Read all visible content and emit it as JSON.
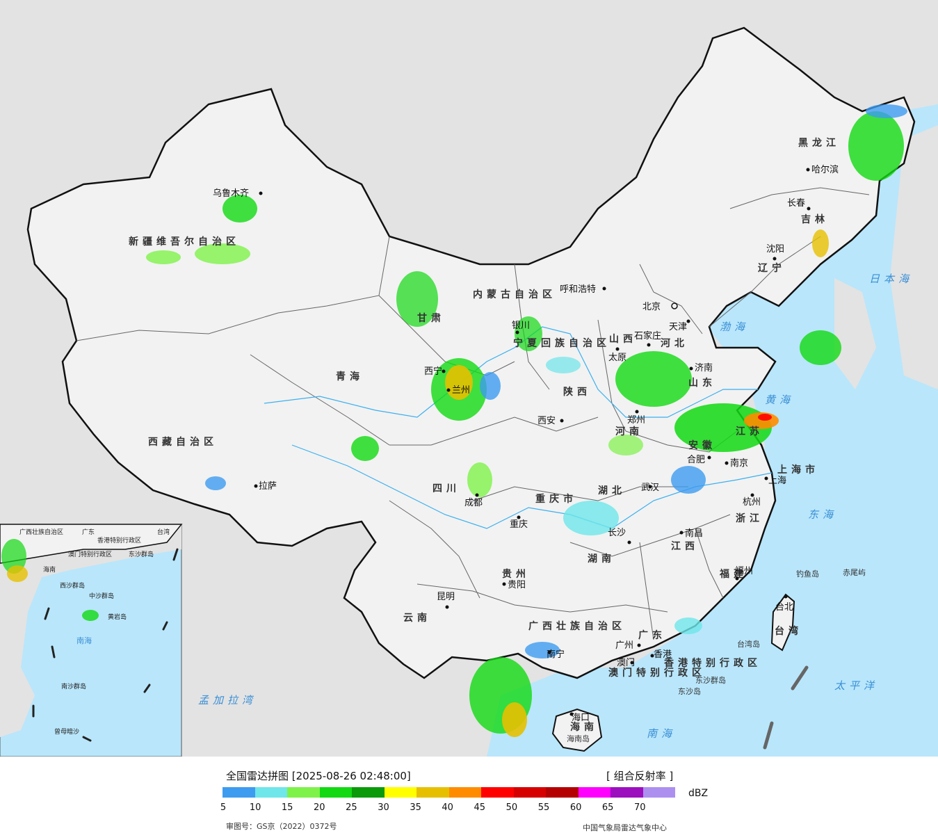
{
  "map": {
    "provinces": [
      {
        "id": "xinjiang",
        "label": "新疆维吾尔自治区"
      },
      {
        "id": "xizang",
        "label": "西藏自治区"
      },
      {
        "id": "qinghai",
        "label": "青海"
      },
      {
        "id": "gansu",
        "label": "甘肃"
      },
      {
        "id": "neimenggu",
        "label": "内蒙古自治区"
      },
      {
        "id": "heilongjiang",
        "label": "黑龙江"
      },
      {
        "id": "jilin",
        "label": "吉林"
      },
      {
        "id": "liaoning",
        "label": "辽宁"
      },
      {
        "id": "hebei",
        "label": "河北"
      },
      {
        "id": "shanxi",
        "label": "山西"
      },
      {
        "id": "shaanxi",
        "label": "陕西"
      },
      {
        "id": "ningxia",
        "label": "宁夏回族自治区"
      },
      {
        "id": "henan",
        "label": "河南"
      },
      {
        "id": "shandong",
        "label": "山东"
      },
      {
        "id": "jiangsu",
        "label": "江苏"
      },
      {
        "id": "anhui",
        "label": "安徽"
      },
      {
        "id": "shanghai",
        "label": "上海市"
      },
      {
        "id": "zhejiang",
        "label": "浙江"
      },
      {
        "id": "hubei",
        "label": "湖北"
      },
      {
        "id": "hunan",
        "label": "湖南"
      },
      {
        "id": "jiangxi",
        "label": "江西"
      },
      {
        "id": "fujian",
        "label": "福建"
      },
      {
        "id": "sichuan",
        "label": "四川"
      },
      {
        "id": "chongqing",
        "label": "重庆市"
      },
      {
        "id": "guizhou",
        "label": "贵州"
      },
      {
        "id": "yunnan",
        "label": "云南"
      },
      {
        "id": "guangxi",
        "label": "广西壮族自治区"
      },
      {
        "id": "guangdong",
        "label": "广东"
      },
      {
        "id": "hainan",
        "label": "海南"
      },
      {
        "id": "taiwan",
        "label": "台湾"
      },
      {
        "id": "hongkong",
        "label": "香港特别行政区"
      },
      {
        "id": "macau",
        "label": "澳门特别行政区"
      }
    ],
    "cities": [
      {
        "id": "urumqi",
        "label": "乌鲁木齐"
      },
      {
        "id": "lhasa",
        "label": "拉萨"
      },
      {
        "id": "xining",
        "label": "西宁"
      },
      {
        "id": "lanzhou",
        "label": "兰州"
      },
      {
        "id": "yinchuan",
        "label": "银川"
      },
      {
        "id": "hohhot",
        "label": "呼和浩特"
      },
      {
        "id": "harbin",
        "label": "哈尔滨"
      },
      {
        "id": "changchun",
        "label": "长春"
      },
      {
        "id": "shenyang",
        "label": "沈阳"
      },
      {
        "id": "beijing",
        "label": "北京"
      },
      {
        "id": "tianjin",
        "label": "天津"
      },
      {
        "id": "shijiazhuang",
        "label": "石家庄"
      },
      {
        "id": "taiyuan",
        "label": "太原"
      },
      {
        "id": "jinan",
        "label": "济南"
      },
      {
        "id": "zhengzhou",
        "label": "郑州"
      },
      {
        "id": "xian",
        "label": "西安"
      },
      {
        "id": "hefei",
        "label": "合肥"
      },
      {
        "id": "nanjing",
        "label": "南京"
      },
      {
        "id": "shanghai",
        "label": "上海"
      },
      {
        "id": "hangzhou",
        "label": "杭州"
      },
      {
        "id": "wuhan",
        "label": "武汉"
      },
      {
        "id": "changsha",
        "label": "长沙"
      },
      {
        "id": "nanchang",
        "label": "南昌"
      },
      {
        "id": "fuzhou",
        "label": "福州"
      },
      {
        "id": "chengdu",
        "label": "成都"
      },
      {
        "id": "chongqing",
        "label": "重庆"
      },
      {
        "id": "guiyang",
        "label": "贵阳"
      },
      {
        "id": "kunming",
        "label": "昆明"
      },
      {
        "id": "nanning",
        "label": "南宁"
      },
      {
        "id": "guangzhou",
        "label": "广州"
      },
      {
        "id": "xianggang",
        "label": "香港"
      },
      {
        "id": "aomen",
        "label": "澳门"
      },
      {
        "id": "haikou",
        "label": "海口"
      },
      {
        "id": "taibei",
        "label": "台北"
      }
    ],
    "seas": [
      {
        "id": "bohai",
        "label": "渤海"
      },
      {
        "id": "huanghai",
        "label": "黄海"
      },
      {
        "id": "donghai",
        "label": "东海"
      },
      {
        "id": "nanhai",
        "label": "南海"
      },
      {
        "id": "riben",
        "label": "日本海"
      },
      {
        "id": "taiping",
        "label": "太平洋"
      },
      {
        "id": "mengjiala",
        "label": "孟加拉湾"
      }
    ],
    "islands": [
      {
        "id": "diaoyu",
        "label": "钓鱼岛"
      },
      {
        "id": "chiwei",
        "label": "赤尾屿"
      },
      {
        "id": "taiwandao",
        "label": "台湾岛"
      },
      {
        "id": "dongsha-qundao",
        "label": "东沙群岛"
      },
      {
        "id": "dongsha-dao",
        "label": "东沙岛"
      },
      {
        "id": "hainandao",
        "label": "海南岛"
      }
    ],
    "inset_labels": [
      {
        "id": "inset-gx",
        "label": "广西壮族自治区"
      },
      {
        "id": "inset-gd",
        "label": "广东"
      },
      {
        "id": "inset-tw",
        "label": "台湾"
      },
      {
        "id": "inset-hk",
        "label": "香港特别行政区"
      },
      {
        "id": "inset-mo",
        "label": "澳门特别行政区"
      },
      {
        "id": "inset-dongsha",
        "label": "东沙群岛"
      },
      {
        "id": "inset-hainan",
        "label": "海南"
      },
      {
        "id": "inset-xisha",
        "label": "西沙群岛"
      },
      {
        "id": "inset-zhongsha",
        "label": "中沙群岛"
      },
      {
        "id": "inset-huangyan",
        "label": "黄岩岛"
      },
      {
        "id": "inset-nanhai",
        "label": "南海"
      },
      {
        "id": "inset-nansha",
        "label": "南沙群岛"
      },
      {
        "id": "inset-zengmu",
        "label": "曾母暗沙"
      }
    ],
    "colors": {
      "ocean": "#b9e6fb",
      "land": "#f2f2f2",
      "outside": "#e3e3e3",
      "border": "#111111"
    }
  },
  "legend": {
    "title": "全国雷达拼图 [2025-08-26 02:48:00]",
    "product": "[ 组合反射率 ]",
    "unit": "dBZ",
    "ticks": [
      "5",
      "10",
      "15",
      "20",
      "25",
      "30",
      "35",
      "40",
      "45",
      "50",
      "55",
      "60",
      "65",
      "70"
    ],
    "colors": [
      "#3d9bf0",
      "#6ee6ea",
      "#7ef249",
      "#12d912",
      "#0a9a0a",
      "#ffff00",
      "#e6c000",
      "#ff8c00",
      "#ff0000",
      "#d60000",
      "#b40000",
      "#ff00ff",
      "#9c0fbf",
      "#ad8ff0"
    ],
    "approval": "审图号：GS京（2022）0372号",
    "source": "中国气象局雷达气象中心"
  }
}
